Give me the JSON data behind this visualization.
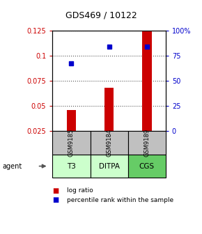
{
  "title": "GDS469 / 10122",
  "samples": [
    "GSM9185",
    "GSM9184",
    "GSM9189"
  ],
  "agents": [
    "T3",
    "DITPA",
    "CGS"
  ],
  "log_ratios": [
    0.046,
    0.068,
    0.125
  ],
  "percentile_ranks": [
    67,
    84,
    84
  ],
  "ylim_left": [
    0.025,
    0.125
  ],
  "ylim_right": [
    0,
    100
  ],
  "yticks_left": [
    0.025,
    0.05,
    0.075,
    0.1,
    0.125
  ],
  "ytick_labels_left": [
    "0.025",
    "0.05",
    "0.075",
    "0.1",
    "0.125"
  ],
  "yticks_right": [
    0,
    25,
    50,
    75,
    100
  ],
  "ytick_labels_right": [
    "0",
    "25",
    "50",
    "75",
    "100%"
  ],
  "bar_color": "#cc0000",
  "dot_color": "#0000cc",
  "sample_box_color": "#c0c0c0",
  "agent_colors": [
    "#ccffcc",
    "#ccffcc",
    "#66cc66"
  ],
  "background_color": "#ffffff",
  "grid_color": "#555555",
  "title_color": "#000000",
  "left_axis_color": "#cc0000",
  "right_axis_color": "#0000cc",
  "bar_width": 0.25
}
